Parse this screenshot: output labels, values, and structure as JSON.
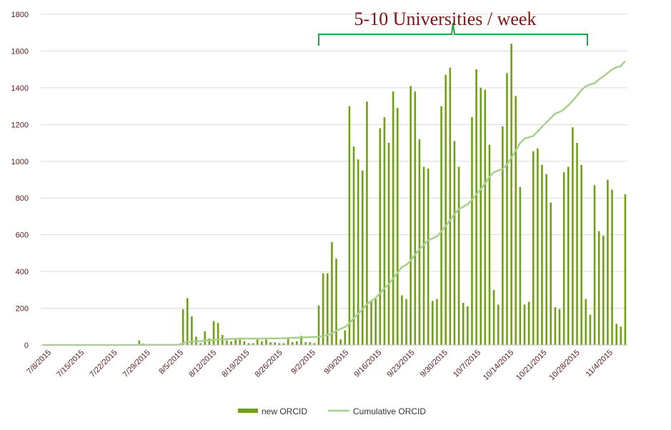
{
  "chart_data": {
    "type": "bar",
    "y_ticks": [
      "0",
      "200",
      "400",
      "600",
      "800",
      "1000",
      "1200",
      "1400",
      "1600",
      "1800"
    ],
    "ylim": [
      0,
      1800
    ],
    "grid": true,
    "x_labels": [
      "7/8/2015",
      "7/15/2015",
      "7/22/2015",
      "7/29/2015",
      "8/5/2015",
      "8/12/2015",
      "8/19/2015",
      "8/26/2015",
      "9/2/2015",
      "9/9/2015",
      "9/16/2015",
      "9/23/2015",
      "9/30/2015",
      "10/7/2015",
      "10/14/2015",
      "10/21/2015",
      "10/28/2015",
      "11/4/2015"
    ],
    "x_label_colors": [
      "#b04040",
      "#6a1a1a",
      "#6a1a1a",
      "#b04040",
      "#6a1a1a",
      "#6a1a1a",
      "#b04040",
      "#6a1a1a",
      "#6a1a1a",
      "#b04040",
      "#b04040",
      "#6a1a1a",
      "#6a1a1a",
      "#b04040",
      "#6a1a1a",
      "#6a1a1a",
      "#6a1a1a",
      "#b04040"
    ],
    "series": [
      {
        "name": "new ORCID",
        "type": "bar",
        "color": "#6fa00f",
        "values": [
          0,
          0,
          0,
          0,
          0,
          0,
          0,
          0,
          0,
          0,
          0,
          0,
          0,
          0,
          0,
          0,
          0,
          0,
          0,
          0,
          0,
          0,
          25,
          8,
          0,
          0,
          0,
          0,
          5,
          0,
          0,
          5,
          195,
          255,
          155,
          45,
          10,
          75,
          35,
          130,
          120,
          55,
          25,
          20,
          30,
          30,
          20,
          10,
          10,
          30,
          20,
          30,
          15,
          15,
          10,
          10,
          40,
          15,
          20,
          50,
          15,
          15,
          10,
          215,
          390,
          390,
          560,
          470,
          30,
          80,
          1300,
          1080,
          1010,
          950,
          1325,
          240,
          250,
          1180,
          1240,
          1100,
          1380,
          1290,
          270,
          250,
          1410,
          1380,
          1120,
          970,
          960,
          240,
          250,
          1300,
          1470,
          1510,
          1110,
          970,
          230,
          210,
          1240,
          1500,
          1400,
          1390,
          1090,
          300,
          220,
          1190,
          1480,
          1640,
          1355,
          860,
          220,
          235,
          1055,
          1070,
          980,
          930,
          775,
          205,
          195,
          940,
          970,
          1185,
          1100,
          980,
          250,
          165,
          870,
          620,
          595,
          900,
          845,
          115,
          100,
          820
        ]
      },
      {
        "name": "Cumulative ORCID",
        "type": "line",
        "color": "#a8d08d",
        "values": [
          0,
          0,
          0,
          0,
          0,
          0,
          0,
          0,
          0,
          0,
          0,
          0,
          0,
          0,
          0,
          0,
          0,
          0,
          0,
          0,
          0,
          0,
          1,
          1,
          1,
          1,
          1,
          1,
          1,
          1,
          1,
          1,
          9,
          17,
          19,
          20,
          21,
          24,
          25,
          28,
          30,
          31,
          32,
          33,
          34,
          35,
          35,
          35,
          35,
          35,
          35,
          35,
          36,
          36,
          36,
          37,
          38,
          39,
          40,
          41,
          42,
          43,
          44,
          45,
          48,
          55,
          63,
          78,
          88,
          98,
          118,
          146,
          170,
          195,
          222,
          240,
          256,
          282,
          308,
          332,
          362,
          394,
          425,
          436,
          460,
          492,
          520,
          546,
          570,
          580,
          592,
          617,
          648,
          680,
          712,
          740,
          752,
          766,
          790,
          820,
          848,
          880,
          915,
          940,
          950,
          958,
          982,
          1020,
          1058,
          1100,
          1123,
          1130,
          1138,
          1162,
          1188,
          1212,
          1236,
          1259,
          1268,
          1283,
          1305,
          1330,
          1357,
          1388,
          1408,
          1418,
          1425,
          1445,
          1462,
          1480,
          1500,
          1512,
          1518,
          1545
        ]
      }
    ],
    "annotation": "5-10 Universities / week",
    "legend": {
      "position": "bottom",
      "items": [
        {
          "label": "new ORCID",
          "color": "#6fa00f",
          "marker": "bar"
        },
        {
          "label": "Cumulative ORCID",
          "color": "#a8d08d",
          "marker": "line"
        }
      ]
    }
  }
}
